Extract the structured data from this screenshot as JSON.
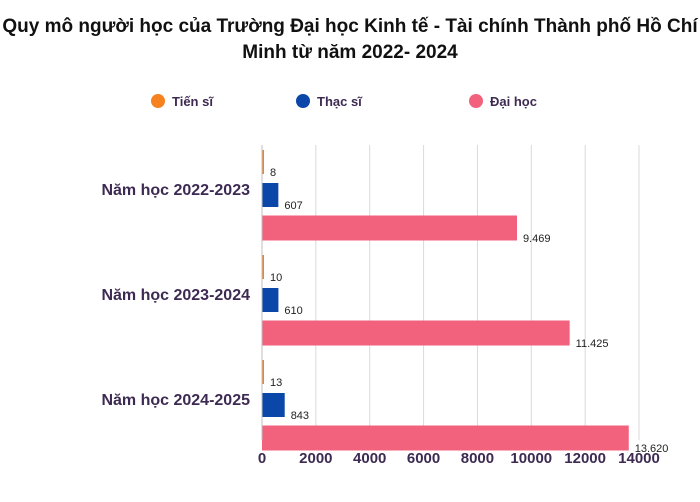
{
  "chart_data": {
    "type": "bar",
    "orientation": "horizontal",
    "title_lines": [
      "Quy mô người học của Trường Đại học Kinh tế - Tài chính Thành phố Hồ Chí",
      "Minh từ năm 2022- 2024"
    ],
    "categories": [
      "Năm học 2022-2023",
      "Năm học 2023-2024",
      "Năm học 2024-2025"
    ],
    "series": [
      {
        "name": "Tiến sĩ",
        "color": "#f5821f",
        "values": [
          8,
          10,
          13
        ],
        "labels": [
          "8",
          "10",
          "13"
        ]
      },
      {
        "name": "Thạc sĩ",
        "color": "#0a47a8",
        "values": [
          607,
          610,
          843
        ],
        "labels": [
          "607",
          "610",
          "843"
        ]
      },
      {
        "name": "Đại học",
        "color": "#f2627d",
        "values": [
          9469,
          11425,
          13620
        ],
        "labels": [
          "9.469",
          "11.425",
          "13.620"
        ]
      }
    ],
    "xlim": [
      0,
      14000
    ],
    "xticks": [
      "0",
      "2000",
      "4000",
      "6000",
      "8000",
      "10000",
      "12000",
      "14000"
    ],
    "grid": true,
    "legend_position": "top"
  }
}
